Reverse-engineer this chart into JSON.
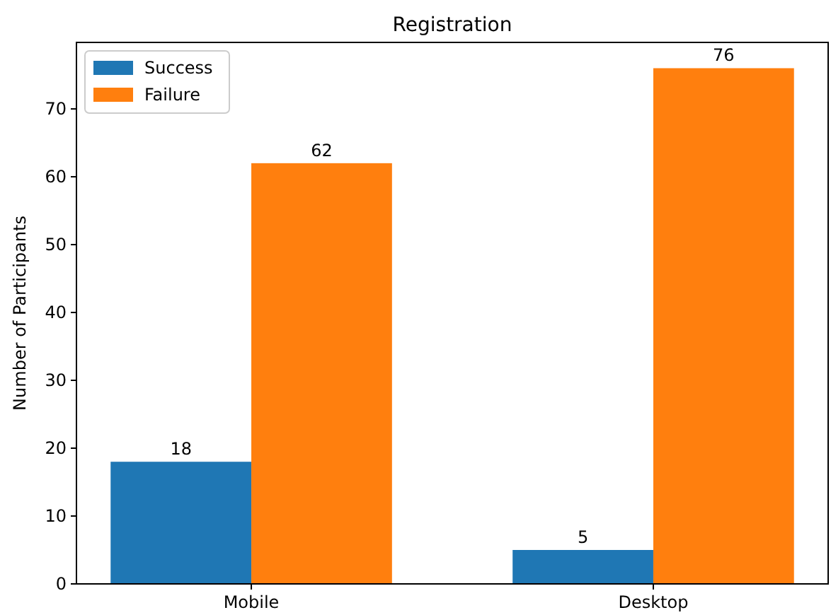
{
  "chart_data": {
    "type": "bar",
    "title": "Registration",
    "ylabel": "Number of Participants",
    "categories": [
      "Mobile",
      "Desktop"
    ],
    "series": [
      {
        "name": "Success",
        "color": "#1f77b4",
        "values": [
          18,
          5
        ]
      },
      {
        "name": "Failure",
        "color": "#ff7f0e",
        "values": [
          62,
          76
        ]
      }
    ],
    "ylim": [
      0,
      79.8
    ],
    "yticks": [
      0,
      10,
      20,
      30,
      40,
      50,
      60,
      70
    ],
    "data_labels": true,
    "legend": "top left"
  }
}
